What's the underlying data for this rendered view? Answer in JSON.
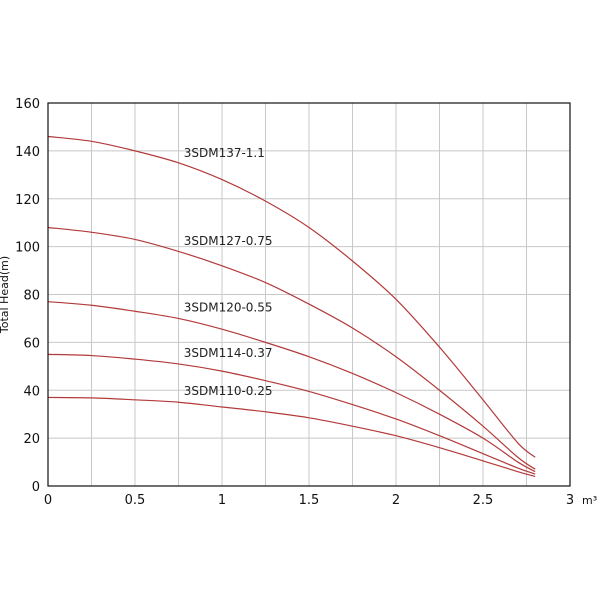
{
  "chart_data": {
    "type": "line",
    "title": "",
    "xlabel": "m³",
    "ylabel": "Total Head(m)",
    "xlim": [
      0,
      3
    ],
    "ylim": [
      0,
      160
    ],
    "x_ticks": [
      "0",
      "0.5",
      "1",
      "1.5",
      "2",
      "2.5",
      "3"
    ],
    "y_ticks": [
      "0",
      "20",
      "40",
      "60",
      "80",
      "100",
      "120",
      "140",
      "160"
    ],
    "grid": true,
    "line_color": "#b33a3a",
    "series": [
      {
        "name": "3SDM137-1.1",
        "x": [
          0,
          0.25,
          0.5,
          0.75,
          1.0,
          1.25,
          1.5,
          1.75,
          2.0,
          2.25,
          2.5,
          2.7,
          2.8
        ],
        "y": [
          146,
          144,
          140,
          135,
          128,
          119,
          108,
          94,
          78,
          58,
          36,
          18,
          12
        ]
      },
      {
        "name": "3SDM127-0.75",
        "x": [
          0,
          0.25,
          0.5,
          0.75,
          1.0,
          1.25,
          1.5,
          1.75,
          2.0,
          2.25,
          2.5,
          2.7,
          2.8
        ],
        "y": [
          108,
          106,
          103,
          98,
          92,
          85,
          76,
          66,
          54,
          40,
          25,
          12,
          7
        ]
      },
      {
        "name": "3SDM120-0.55",
        "x": [
          0,
          0.25,
          0.5,
          0.75,
          1.0,
          1.25,
          1.5,
          1.75,
          2.0,
          2.25,
          2.5,
          2.7,
          2.8
        ],
        "y": [
          77,
          75.5,
          73,
          70,
          65.5,
          60,
          54,
          47,
          39,
          30,
          20,
          10,
          6
        ]
      },
      {
        "name": "3SDM114-0.37",
        "x": [
          0,
          0.25,
          0.5,
          0.75,
          1.0,
          1.25,
          1.5,
          1.75,
          2.0,
          2.25,
          2.5,
          2.7,
          2.8
        ],
        "y": [
          55,
          54.5,
          53,
          51,
          48,
          44,
          39.5,
          34,
          28,
          21,
          13.5,
          7.5,
          5
        ]
      },
      {
        "name": "3SDM110-0.25",
        "x": [
          0,
          0.25,
          0.5,
          0.75,
          1.0,
          1.25,
          1.5,
          1.75,
          2.0,
          2.25,
          2.5,
          2.7,
          2.8
        ],
        "y": [
          37,
          36.8,
          36,
          35,
          33,
          31,
          28.5,
          25,
          21,
          16,
          10.5,
          6,
          4
        ]
      }
    ]
  }
}
